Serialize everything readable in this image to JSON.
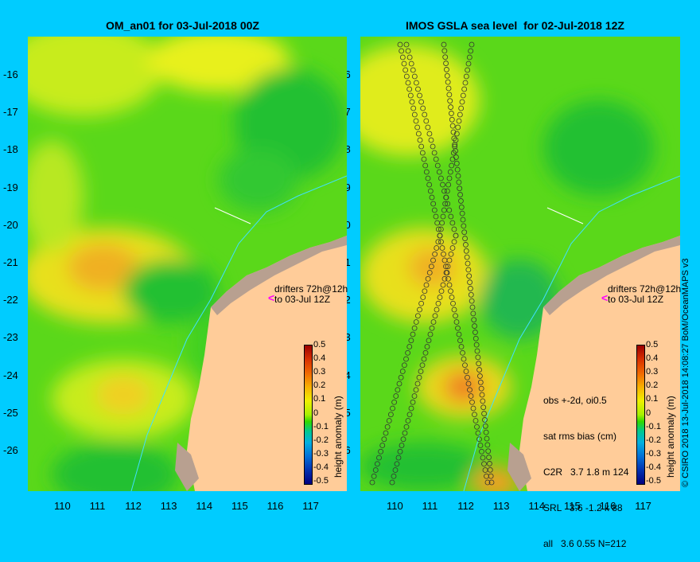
{
  "left_panel": {
    "title": "OM_an01 for 03-Jul-2018 00Z",
    "drifter_note": [
      "drifters 72h@12h",
      "to 03-Jul 12Z"
    ],
    "colorbar": {
      "label": "height anomaly (m)",
      "ticks": [
        "0.5",
        "0.4",
        "0.3",
        "0.2",
        "0.1",
        "0",
        "-0.1",
        "-0.2",
        "-0.3",
        "-0.4",
        "-0.5"
      ]
    }
  },
  "right_panel": {
    "title": "IMOS GSLA sea level  for 02-Jul-2018 12Z",
    "drifter_note": [
      "drifters 72h@12h",
      "to 03-Jul 12Z"
    ],
    "stats": [
      "obs +-2d, oi0.5",
      "sat rms bias (cm)",
      "C2R   3.7 1.8 m 124",
      "SRL   3.6 -1.2 k 88",
      "all   3.6 0.55 N=212"
    ],
    "colorbar": {
      "label": "height anomaly (m)",
      "ticks": [
        "0.5",
        "0.4",
        "0.3",
        "0.2",
        "0.1",
        "0",
        "-0.1",
        "-0.2",
        "-0.3",
        "-0.4",
        "-0.5"
      ]
    }
  },
  "lat_ticks": [
    "-16",
    "-17",
    "-18",
    "-19",
    "-20",
    "-21",
    "-22",
    "-23",
    "-24",
    "-25",
    "-26"
  ],
  "lon_ticks": [
    "110",
    "111",
    "112",
    "113",
    "114",
    "115",
    "116",
    "117"
  ],
  "credit": "© CSIRO 2018  13-Jul-2018 14:08:27 BoM/OceanMAPS v3",
  "colors": {
    "background": "#00ccff",
    "land": "#ffcc99",
    "coast": "#b8a090",
    "drifter": "#ff00ff"
  }
}
